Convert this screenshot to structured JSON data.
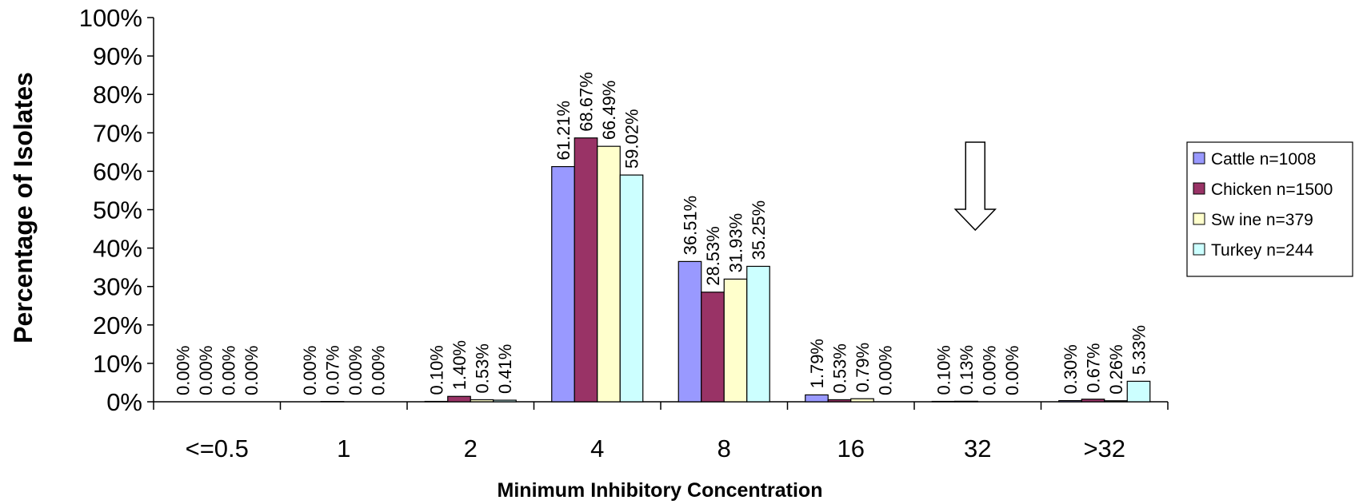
{
  "chart_data": {
    "type": "bar",
    "xlabel": "Minimum Inhibitory Concentration",
    "ylabel": "Percentage of Isolates",
    "ylim": [
      0,
      100
    ],
    "yticks": [
      "0%",
      "10%",
      "20%",
      "30%",
      "40%",
      "50%",
      "60%",
      "70%",
      "80%",
      "90%",
      "100%"
    ],
    "categories": [
      "<=0.5",
      "1",
      "2",
      "4",
      "8",
      "16",
      "32",
      ">32"
    ],
    "series": [
      {
        "name": "Cattle n=1008",
        "color": "#9999ff",
        "values": [
          0.0,
          0.0,
          0.1,
          61.21,
          36.51,
          1.79,
          0.1,
          0.3
        ],
        "labels": [
          "0.00%",
          "0.00%",
          "0.10%",
          "61.21%",
          "36.51%",
          "1.79%",
          "0.10%",
          "0.30%"
        ]
      },
      {
        "name": "Chicken n=1500",
        "color": "#993366",
        "values": [
          0.0,
          0.07,
          1.4,
          68.67,
          28.53,
          0.53,
          0.13,
          0.67
        ],
        "labels": [
          "0.00%",
          "0.07%",
          "1.40%",
          "68.67%",
          "28.53%",
          "0.53%",
          "0.13%",
          "0.67%"
        ]
      },
      {
        "name": "Sw ine n=379",
        "color": "#ffffcc",
        "values": [
          0.0,
          0.0,
          0.53,
          66.49,
          31.93,
          0.79,
          0.0,
          0.26
        ],
        "labels": [
          "0.00%",
          "0.00%",
          "0.53%",
          "66.49%",
          "31.93%",
          "0.79%",
          "0.00%",
          "0.26%"
        ]
      },
      {
        "name": "Turkey n=244",
        "color": "#ccffff",
        "values": [
          0.0,
          0.0,
          0.41,
          59.02,
          35.25,
          0.0,
          0.0,
          5.33
        ],
        "labels": [
          "0.00%",
          "0.00%",
          "0.41%",
          "59.02%",
          "35.25%",
          "0.00%",
          "0.00%",
          "5.33%"
        ]
      }
    ],
    "annotations": [
      {
        "type": "down-arrow",
        "category": "32"
      }
    ],
    "legend_position": "right",
    "grid": false
  }
}
